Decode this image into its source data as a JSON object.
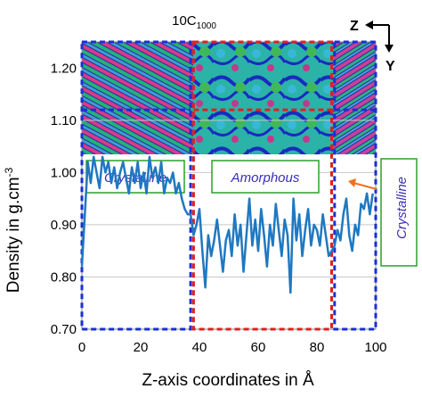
{
  "chart_data": {
    "type": "line",
    "title": "10C",
    "title_subscript": "1000",
    "xlabel": "Z-axis coordinates in Å",
    "ylabel": "Density in g.cm",
    "ylabel_superscript": "-3",
    "xlim": [
      0,
      100
    ],
    "ylim": [
      0.7,
      1.25
    ],
    "xticks": [
      "0",
      "20",
      "40",
      "60",
      "80",
      "100"
    ],
    "yticks": [
      "0.70",
      "0.80",
      "0.90",
      "1.00",
      "1.10",
      "1.20"
    ],
    "grid": true,
    "series_color": "#1f78c1",
    "x": [
      0,
      1,
      2,
      3,
      4,
      5,
      6,
      7,
      8,
      9,
      10,
      11,
      12,
      13,
      14,
      15,
      16,
      17,
      18,
      19,
      20,
      21,
      22,
      23,
      24,
      25,
      26,
      27,
      28,
      29,
      30,
      31,
      32,
      33,
      34,
      35,
      36,
      37,
      38,
      39,
      40,
      41,
      42,
      43,
      44,
      45,
      46,
      47,
      48,
      49,
      50,
      51,
      52,
      53,
      54,
      55,
      56,
      57,
      58,
      59,
      60,
      61,
      62,
      63,
      64,
      65,
      66,
      67,
      68,
      69,
      70,
      71,
      72,
      73,
      74,
      75,
      76,
      77,
      78,
      79,
      80,
      81,
      82,
      83,
      84,
      85,
      86,
      87,
      88,
      89,
      90,
      91,
      92,
      93,
      94,
      95,
      96,
      97,
      98,
      99
    ],
    "values": [
      0.82,
      0.92,
      1.02,
      0.98,
      1.03,
      1.0,
      0.97,
      1.03,
      1.0,
      1.02,
      0.98,
      1.01,
      0.97,
      1.0,
      1.02,
      0.99,
      0.96,
      1.01,
      0.98,
      1.02,
      0.97,
      1.0,
      0.96,
      1.03,
      0.99,
      1.01,
      0.98,
      1.02,
      0.96,
      0.99,
      0.98,
      1.0,
      0.96,
      0.98,
      0.95,
      0.93,
      0.92,
      0.92,
      0.88,
      0.9,
      0.93,
      0.85,
      0.78,
      0.88,
      0.84,
      0.87,
      0.91,
      0.86,
      0.81,
      0.87,
      0.89,
      0.84,
      0.92,
      0.86,
      0.9,
      0.81,
      0.88,
      0.95,
      0.86,
      0.91,
      0.85,
      0.93,
      0.88,
      0.82,
      0.9,
      0.86,
      0.94,
      0.89,
      0.84,
      0.91,
      0.88,
      0.77,
      0.95,
      0.87,
      0.92,
      0.84,
      0.89,
      0.93,
      0.86,
      0.9,
      0.89,
      0.86,
      0.92,
      0.88,
      0.84,
      0.85,
      0.86,
      0.89,
      0.87,
      0.92,
      0.95,
      0.88,
      0.85,
      0.9,
      0.88,
      0.94,
      0.93,
      0.96,
      0.92,
      0.96
    ],
    "regions": [
      {
        "label": "Crystalline",
        "x_start": 0,
        "x_end": 37,
        "border": "#1a2fd6"
      },
      {
        "label": "Amorphous",
        "x_start": 38,
        "x_end": 85,
        "border": "#e02020"
      },
      {
        "label": "Crystalline",
        "x_start": 86,
        "x_end": 100,
        "border": "#1a2fd6"
      }
    ],
    "region_label_color": "#3a2fb5",
    "label_box_border": "#2aa12a",
    "arrow_color": "#f07020",
    "compass": {
      "horizontal": "Z",
      "vertical": "Y"
    }
  }
}
